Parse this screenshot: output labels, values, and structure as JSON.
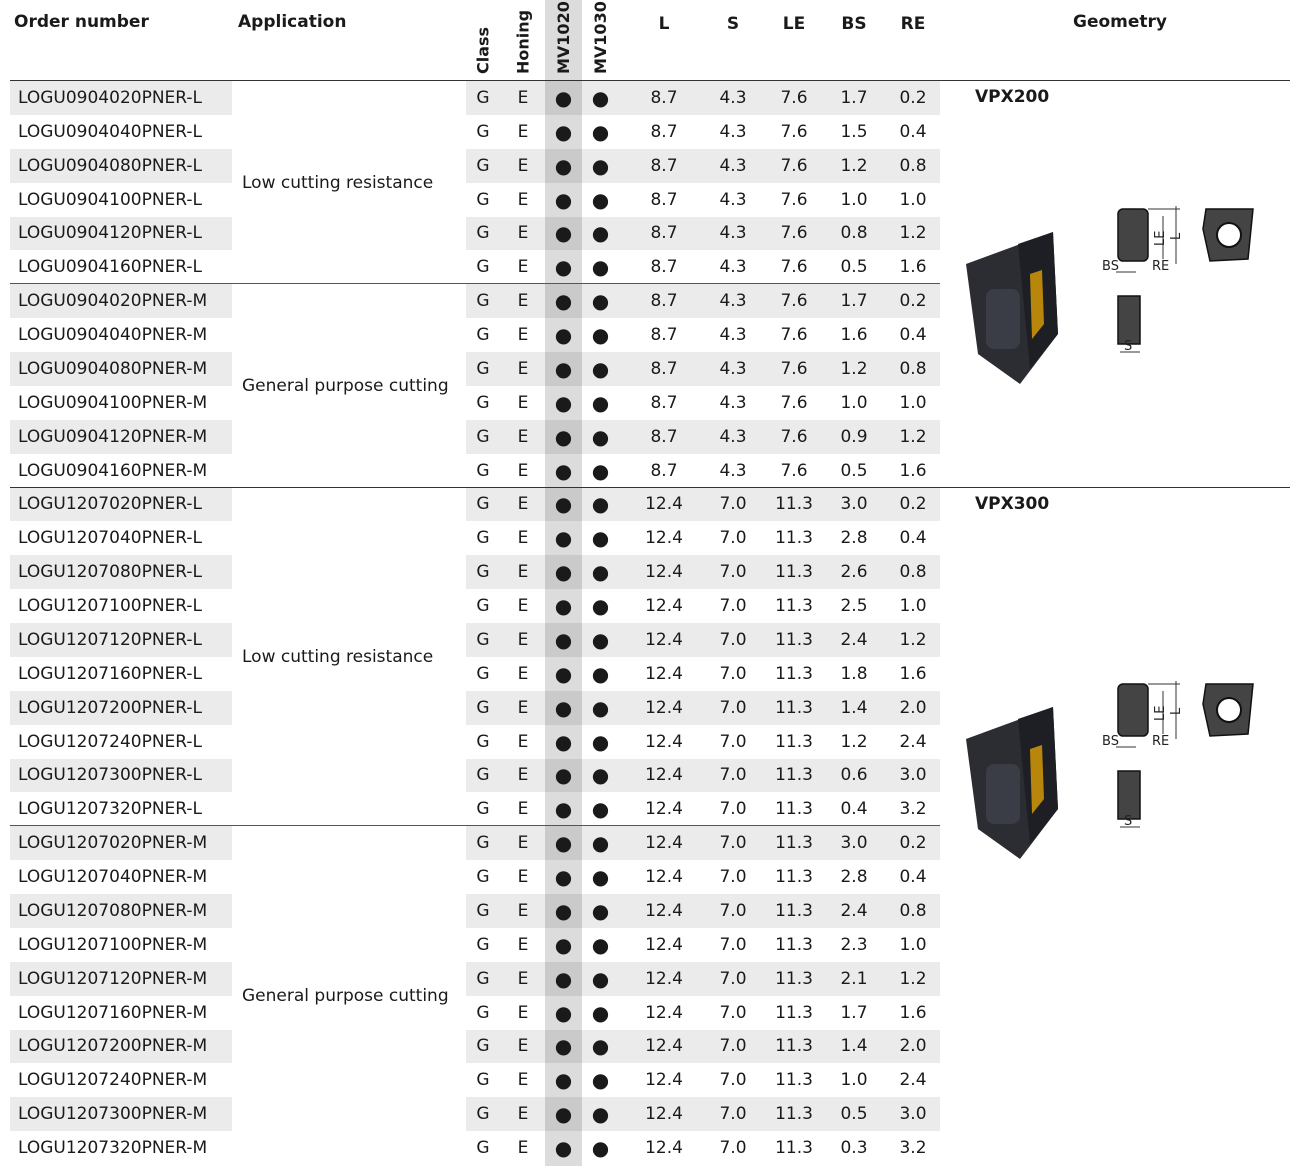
{
  "header": {
    "order_number": "Order number",
    "application": "Application",
    "class": "Class",
    "honing": "Honing",
    "mv1020": "MV1020",
    "mv1030": "MV1030",
    "l": "L",
    "s": "S",
    "le": "LE",
    "bs": "BS",
    "re": "RE",
    "geometry": "Geometry"
  },
  "groups": [
    {
      "geometry": "VPX200",
      "diagram": {
        "le": "LE",
        "l": "L",
        "bs": "BS",
        "re": "RE",
        "s": "S"
      },
      "subgroups": [
        {
          "application": "Low cutting resistance",
          "rows": [
            [
              "LOGU0904020PNER-L",
              "G",
              "E",
              "●",
              "●",
              "8.7",
              "4.3",
              "7.6",
              "1.7",
              "0.2"
            ],
            [
              "LOGU0904040PNER-L",
              "G",
              "E",
              "●",
              "●",
              "8.7",
              "4.3",
              "7.6",
              "1.5",
              "0.4"
            ],
            [
              "LOGU0904080PNER-L",
              "G",
              "E",
              "●",
              "●",
              "8.7",
              "4.3",
              "7.6",
              "1.2",
              "0.8"
            ],
            [
              "LOGU0904100PNER-L",
              "G",
              "E",
              "●",
              "●",
              "8.7",
              "4.3",
              "7.6",
              "1.0",
              "1.0"
            ],
            [
              "LOGU0904120PNER-L",
              "G",
              "E",
              "●",
              "●",
              "8.7",
              "4.3",
              "7.6",
              "0.8",
              "1.2"
            ],
            [
              "LOGU0904160PNER-L",
              "G",
              "E",
              "●",
              "●",
              "8.7",
              "4.3",
              "7.6",
              "0.5",
              "1.6"
            ]
          ]
        },
        {
          "application": "General purpose cutting",
          "rows": [
            [
              "LOGU0904020PNER-M",
              "G",
              "E",
              "●",
              "●",
              "8.7",
              "4.3",
              "7.6",
              "1.7",
              "0.2"
            ],
            [
              "LOGU0904040PNER-M",
              "G",
              "E",
              "●",
              "●",
              "8.7",
              "4.3",
              "7.6",
              "1.6",
              "0.4"
            ],
            [
              "LOGU0904080PNER-M",
              "G",
              "E",
              "●",
              "●",
              "8.7",
              "4.3",
              "7.6",
              "1.2",
              "0.8"
            ],
            [
              "LOGU0904100PNER-M",
              "G",
              "E",
              "●",
              "●",
              "8.7",
              "4.3",
              "7.6",
              "1.0",
              "1.0"
            ],
            [
              "LOGU0904120PNER-M",
              "G",
              "E",
              "●",
              "●",
              "8.7",
              "4.3",
              "7.6",
              "0.9",
              "1.2"
            ],
            [
              "LOGU0904160PNER-M",
              "G",
              "E",
              "●",
              "●",
              "8.7",
              "4.3",
              "7.6",
              "0.5",
              "1.6"
            ]
          ]
        }
      ]
    },
    {
      "geometry": "VPX300",
      "diagram": {
        "le": "LE",
        "l": "L",
        "bs": "BS",
        "re": "RE",
        "s": "S"
      },
      "subgroups": [
        {
          "application": "Low cutting resistance",
          "rows": [
            [
              "LOGU1207020PNER-L",
              "G",
              "E",
              "●",
              "●",
              "12.4",
              "7.0",
              "11.3",
              "3.0",
              "0.2"
            ],
            [
              "LOGU1207040PNER-L",
              "G",
              "E",
              "●",
              "●",
              "12.4",
              "7.0",
              "11.3",
              "2.8",
              "0.4"
            ],
            [
              "LOGU1207080PNER-L",
              "G",
              "E",
              "●",
              "●",
              "12.4",
              "7.0",
              "11.3",
              "2.6",
              "0.8"
            ],
            [
              "LOGU1207100PNER-L",
              "G",
              "E",
              "●",
              "●",
              "12.4",
              "7.0",
              "11.3",
              "2.5",
              "1.0"
            ],
            [
              "LOGU1207120PNER-L",
              "G",
              "E",
              "●",
              "●",
              "12.4",
              "7.0",
              "11.3",
              "2.4",
              "1.2"
            ],
            [
              "LOGU1207160PNER-L",
              "G",
              "E",
              "●",
              "●",
              "12.4",
              "7.0",
              "11.3",
              "1.8",
              "1.6"
            ],
            [
              "LOGU1207200PNER-L",
              "G",
              "E",
              "●",
              "●",
              "12.4",
              "7.0",
              "11.3",
              "1.4",
              "2.0"
            ],
            [
              "LOGU1207240PNER-L",
              "G",
              "E",
              "●",
              "●",
              "12.4",
              "7.0",
              "11.3",
              "1.2",
              "2.4"
            ],
            [
              "LOGU1207300PNER-L",
              "G",
              "E",
              "●",
              "●",
              "12.4",
              "7.0",
              "11.3",
              "0.6",
              "3.0"
            ],
            [
              "LOGU1207320PNER-L",
              "G",
              "E",
              "●",
              "●",
              "12.4",
              "7.0",
              "11.3",
              "0.4",
              "3.2"
            ]
          ]
        },
        {
          "application": "General purpose cutting",
          "rows": [
            [
              "LOGU1207020PNER-M",
              "G",
              "E",
              "●",
              "●",
              "12.4",
              "7.0",
              "11.3",
              "3.0",
              "0.2"
            ],
            [
              "LOGU1207040PNER-M",
              "G",
              "E",
              "●",
              "●",
              "12.4",
              "7.0",
              "11.3",
              "2.8",
              "0.4"
            ],
            [
              "LOGU1207080PNER-M",
              "G",
              "E",
              "●",
              "●",
              "12.4",
              "7.0",
              "11.3",
              "2.4",
              "0.8"
            ],
            [
              "LOGU1207100PNER-M",
              "G",
              "E",
              "●",
              "●",
              "12.4",
              "7.0",
              "11.3",
              "2.3",
              "1.0"
            ],
            [
              "LOGU1207120PNER-M",
              "G",
              "E",
              "●",
              "●",
              "12.4",
              "7.0",
              "11.3",
              "2.1",
              "1.2"
            ],
            [
              "LOGU1207160PNER-M",
              "G",
              "E",
              "●",
              "●",
              "12.4",
              "7.0",
              "11.3",
              "1.7",
              "1.6"
            ],
            [
              "LOGU1207200PNER-M",
              "G",
              "E",
              "●",
              "●",
              "12.4",
              "7.0",
              "11.3",
              "1.4",
              "2.0"
            ],
            [
              "LOGU1207240PNER-M",
              "G",
              "E",
              "●",
              "●",
              "12.4",
              "7.0",
              "11.3",
              "1.0",
              "2.4"
            ],
            [
              "LOGU1207300PNER-M",
              "G",
              "E",
              "●",
              "●",
              "12.4",
              "7.0",
              "11.3",
              "0.5",
              "3.0"
            ],
            [
              "LOGU1207320PNER-M",
              "G",
              "E",
              "●",
              "●",
              "12.4",
              "7.0",
              "11.3",
              "0.3",
              "3.2"
            ]
          ]
        }
      ]
    }
  ]
}
